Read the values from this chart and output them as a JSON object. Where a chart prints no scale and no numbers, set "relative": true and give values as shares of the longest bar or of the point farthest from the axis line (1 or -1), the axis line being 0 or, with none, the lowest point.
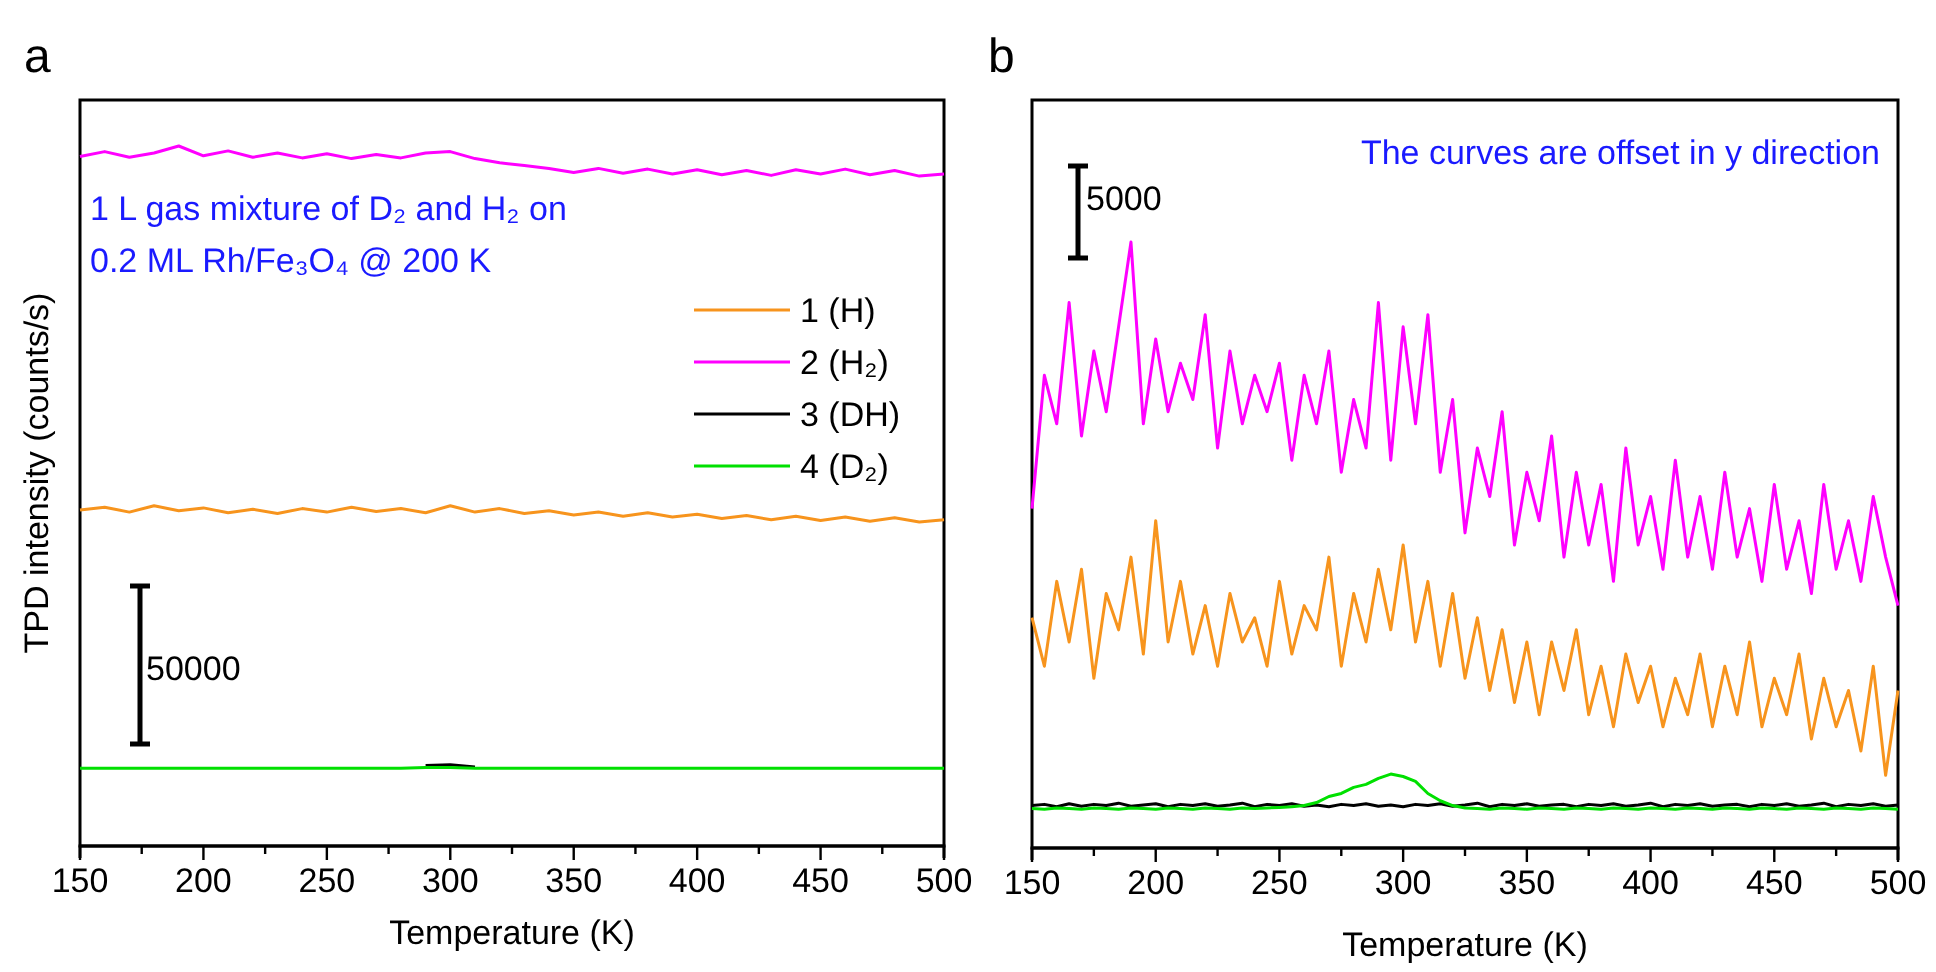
{
  "chart_data": [
    {
      "type": "line",
      "title": "a",
      "xlabel": "Temperature (K)",
      "ylabel": "TPD intensity (counts/s)",
      "relative": true,
      "tick_labels": "x",
      "legend": "right",
      "grid": false,
      "annotations": [
        "1 L gas mixture of D₂ and H₂ on",
        "0.2 ML Rh/Fe₃O₄ @ 200 K",
        "50000"
      ],
      "xlim": [
        150,
        500
      ],
      "xticks": [
        150,
        {
          "value": 175,
          "label": null
        },
        200,
        {
          "value": 225,
          "label": null
        },
        250,
        {
          "value": 275,
          "label": null
        },
        300,
        {
          "value": 325,
          "label": null
        },
        350,
        {
          "value": 375,
          "label": null
        },
        400,
        {
          "value": 425,
          "label": null
        },
        450,
        {
          "value": 475,
          "label": null
        },
        500
      ],
      "x": [
        150,
        160,
        170,
        180,
        190,
        200,
        210,
        220,
        230,
        240,
        250,
        260,
        270,
        280,
        290,
        300,
        310,
        320,
        330,
        340,
        350,
        360,
        370,
        380,
        390,
        400,
        410,
        420,
        430,
        440,
        450,
        460,
        470,
        480,
        490,
        500
      ],
      "series": [
        {
          "name": "1 (H)",
          "color": "#f7941d",
          "values": [
            0.48,
            0.484,
            0.477,
            0.486,
            0.479,
            0.483,
            0.476,
            0.481,
            0.475,
            0.482,
            0.477,
            0.484,
            0.478,
            0.482,
            0.476,
            0.486,
            0.477,
            0.482,
            0.475,
            0.479,
            0.473,
            0.477,
            0.471,
            0.476,
            0.47,
            0.474,
            0.468,
            0.472,
            0.466,
            0.471,
            0.465,
            0.47,
            0.464,
            0.469,
            0.463,
            0.466
          ]
        },
        {
          "name": "2 (H₂)",
          "color": "#ff00ff",
          "values": [
            0.985,
            0.992,
            0.984,
            0.99,
            1.0,
            0.986,
            0.993,
            0.984,
            0.99,
            0.983,
            0.989,
            0.982,
            0.988,
            0.983,
            0.99,
            0.992,
            0.982,
            0.976,
            0.972,
            0.968,
            0.962,
            0.968,
            0.961,
            0.967,
            0.96,
            0.966,
            0.959,
            0.965,
            0.958,
            0.966,
            0.96,
            0.967,
            0.959,
            0.965,
            0.957,
            0.96
          ]
        },
        {
          "name": "3 (DH)",
          "color": "#000000",
          "values": [
            null,
            null,
            null,
            null,
            null,
            null,
            null,
            null,
            null,
            null,
            null,
            null,
            null,
            null,
            0.115,
            0.116,
            0.113,
            null,
            null,
            null,
            null,
            null,
            null,
            null,
            null,
            null,
            null,
            null,
            null,
            null,
            null,
            null,
            null,
            null,
            null,
            null
          ]
        },
        {
          "name": "4 (D₂)",
          "color": "#00e000",
          "values": [
            0.111,
            0.111,
            0.111,
            0.111,
            0.111,
            0.111,
            0.111,
            0.111,
            0.111,
            0.111,
            0.111,
            0.111,
            0.111,
            0.111,
            0.112,
            0.112,
            0.111,
            0.111,
            0.111,
            0.111,
            0.111,
            0.111,
            0.111,
            0.111,
            0.111,
            0.111,
            0.111,
            0.111,
            0.111,
            0.111,
            0.111,
            0.111,
            0.111,
            0.111,
            0.111,
            0.111
          ]
        }
      ]
    },
    {
      "type": "line",
      "title": "b",
      "xlabel": "Temperature (K)",
      "relative": true,
      "tick_labels": "x",
      "grid": false,
      "annotations": [
        "The curves are offset in y direction",
        "5000"
      ],
      "xlim": [
        150,
        500
      ],
      "xticks": [
        150,
        {
          "value": 175,
          "label": null
        },
        200,
        {
          "value": 225,
          "label": null
        },
        250,
        {
          "value": 275,
          "label": null
        },
        300,
        {
          "value": 325,
          "label": null
        },
        350,
        {
          "value": 375,
          "label": null
        },
        400,
        {
          "value": 425,
          "label": null
        },
        450,
        {
          "value": 475,
          "label": null
        },
        500
      ],
      "x": [
        150,
        155,
        160,
        165,
        170,
        175,
        180,
        185,
        190,
        195,
        200,
        205,
        210,
        215,
        220,
        225,
        230,
        235,
        240,
        245,
        250,
        255,
        260,
        265,
        270,
        275,
        280,
        285,
        290,
        295,
        300,
        305,
        310,
        315,
        320,
        325,
        330,
        335,
        340,
        345,
        350,
        355,
        360,
        365,
        370,
        375,
        380,
        385,
        390,
        395,
        400,
        405,
        410,
        415,
        420,
        425,
        430,
        435,
        440,
        445,
        450,
        455,
        460,
        465,
        470,
        475,
        480,
        485,
        490,
        495,
        500
      ],
      "series": [
        {
          "color": "#ff00ff",
          "values": [
            0.56,
            0.78,
            0.7,
            0.9,
            0.68,
            0.82,
            0.72,
            0.86,
            1.0,
            0.7,
            0.84,
            0.72,
            0.8,
            0.74,
            0.88,
            0.66,
            0.82,
            0.7,
            0.78,
            0.72,
            0.8,
            0.64,
            0.78,
            0.7,
            0.82,
            0.62,
            0.74,
            0.66,
            0.9,
            0.64,
            0.86,
            0.7,
            0.88,
            0.62,
            0.74,
            0.52,
            0.66,
            0.58,
            0.72,
            0.5,
            0.62,
            0.54,
            0.68,
            0.48,
            0.62,
            0.5,
            0.6,
            0.44,
            0.66,
            0.5,
            0.58,
            0.46,
            0.64,
            0.48,
            0.58,
            0.46,
            0.62,
            0.48,
            0.56,
            0.44,
            0.6,
            0.46,
            0.54,
            0.42,
            0.6,
            0.46,
            0.54,
            0.44,
            0.58,
            0.48,
            0.4
          ]
        },
        {
          "color": "#f7941d",
          "values": [
            0.38,
            0.3,
            0.44,
            0.34,
            0.46,
            0.28,
            0.42,
            0.36,
            0.48,
            0.32,
            0.54,
            0.34,
            0.44,
            0.32,
            0.4,
            0.3,
            0.42,
            0.34,
            0.38,
            0.3,
            0.44,
            0.32,
            0.4,
            0.36,
            0.48,
            0.3,
            0.42,
            0.34,
            0.46,
            0.36,
            0.5,
            0.34,
            0.44,
            0.3,
            0.42,
            0.28,
            0.38,
            0.26,
            0.36,
            0.24,
            0.34,
            0.22,
            0.34,
            0.26,
            0.36,
            0.22,
            0.3,
            0.2,
            0.32,
            0.24,
            0.3,
            0.2,
            0.28,
            0.22,
            0.32,
            0.2,
            0.3,
            0.22,
            0.34,
            0.2,
            0.28,
            0.22,
            0.32,
            0.18,
            0.28,
            0.2,
            0.26,
            0.16,
            0.3,
            0.12,
            0.26
          ]
        },
        {
          "color": "#000000",
          "values": [
            0.07,
            0.072,
            0.068,
            0.073,
            0.069,
            0.072,
            0.07,
            0.074,
            0.069,
            0.071,
            0.073,
            0.068,
            0.072,
            0.07,
            0.073,
            0.069,
            0.071,
            0.074,
            0.068,
            0.072,
            0.07,
            0.073,
            0.069,
            0.071,
            0.068,
            0.072,
            0.07,
            0.073,
            0.069,
            0.071,
            0.068,
            0.072,
            0.07,
            0.073,
            0.069,
            0.071,
            0.074,
            0.068,
            0.072,
            0.07,
            0.073,
            0.069,
            0.071,
            0.072,
            0.068,
            0.072,
            0.07,
            0.073,
            0.069,
            0.071,
            0.074,
            0.068,
            0.072,
            0.07,
            0.073,
            0.069,
            0.071,
            0.072,
            0.068,
            0.072,
            0.07,
            0.073,
            0.069,
            0.071,
            0.074,
            0.068,
            0.072,
            0.07,
            0.073,
            0.069,
            0.071
          ]
        },
        {
          "color": "#00e000",
          "values": [
            0.065,
            0.064,
            0.066,
            0.065,
            0.064,
            0.066,
            0.065,
            0.064,
            0.066,
            0.065,
            0.064,
            0.066,
            0.065,
            0.064,
            0.066,
            0.065,
            0.064,
            0.066,
            0.065,
            0.066,
            0.067,
            0.068,
            0.07,
            0.075,
            0.085,
            0.09,
            0.1,
            0.105,
            0.115,
            0.122,
            0.118,
            0.11,
            0.09,
            0.078,
            0.07,
            0.066,
            0.065,
            0.064,
            0.066,
            0.065,
            0.064,
            0.066,
            0.065,
            0.064,
            0.066,
            0.065,
            0.064,
            0.066,
            0.065,
            0.064,
            0.066,
            0.065,
            0.064,
            0.066,
            0.065,
            0.064,
            0.066,
            0.065,
            0.064,
            0.066,
            0.065,
            0.064,
            0.066,
            0.065,
            0.064,
            0.066,
            0.065,
            0.064,
            0.066,
            0.065,
            0.064
          ]
        }
      ]
    }
  ]
}
